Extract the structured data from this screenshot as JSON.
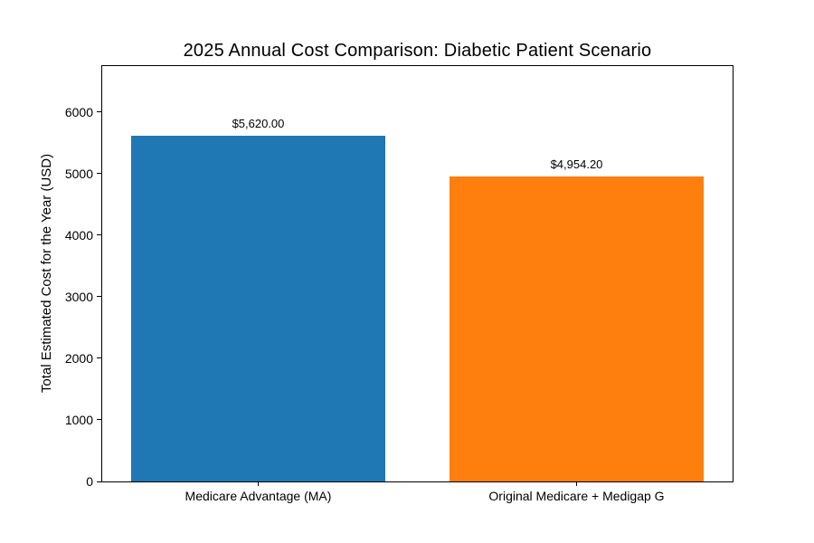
{
  "figure": {
    "background": "#ffffff",
    "spine_color": "#000000",
    "text_color": "#000000"
  },
  "chart_data": {
    "type": "bar",
    "title": "2025 Annual Cost Comparison: Diabetic Patient Scenario",
    "xlabel": "",
    "ylabel": "Total Estimated Cost for the Year (USD)",
    "categories": [
      "Medicare Advantage (MA)",
      "Original Medicare + Medigap G"
    ],
    "values": [
      5620.0,
      4954.2
    ],
    "value_labels": [
      "$5,620.00",
      "$4,954.20"
    ],
    "bar_colors": [
      "#1f77b4",
      "#ff7f0e"
    ],
    "yticks": [
      0,
      1000,
      2000,
      3000,
      4000,
      5000,
      6000
    ],
    "ylim": [
      0,
      6744
    ],
    "xlim": [
      -0.49,
      1.49
    ],
    "bar_width": 0.8,
    "grid": false,
    "legend": null
  }
}
